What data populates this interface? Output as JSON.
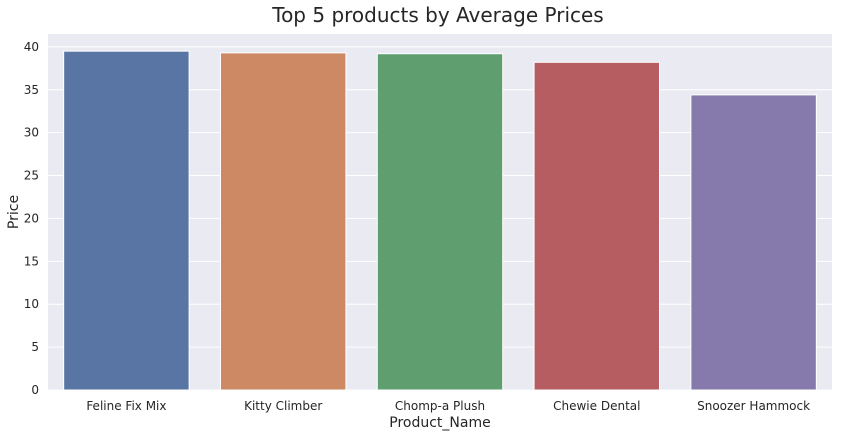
{
  "chart_data": {
    "type": "bar",
    "title": "Top 5 products by Average Prices",
    "xlabel": "Product_Name",
    "ylabel": "Price",
    "categories": [
      "Feline Fix Mix",
      "Kitty Climber",
      "Chomp-a Plush",
      "Chewie Dental",
      "Snoozer Hammock"
    ],
    "values": [
      39.5,
      39.3,
      39.2,
      38.2,
      34.4
    ],
    "ylim": [
      0,
      41.5
    ],
    "yticks": [
      0,
      5,
      10,
      15,
      20,
      25,
      30,
      35,
      40
    ],
    "colors": [
      "#5975a4",
      "#cc8963",
      "#5f9e6e",
      "#b55d60",
      "#857aab"
    ],
    "background": "#eaeaf2",
    "grid": true
  }
}
